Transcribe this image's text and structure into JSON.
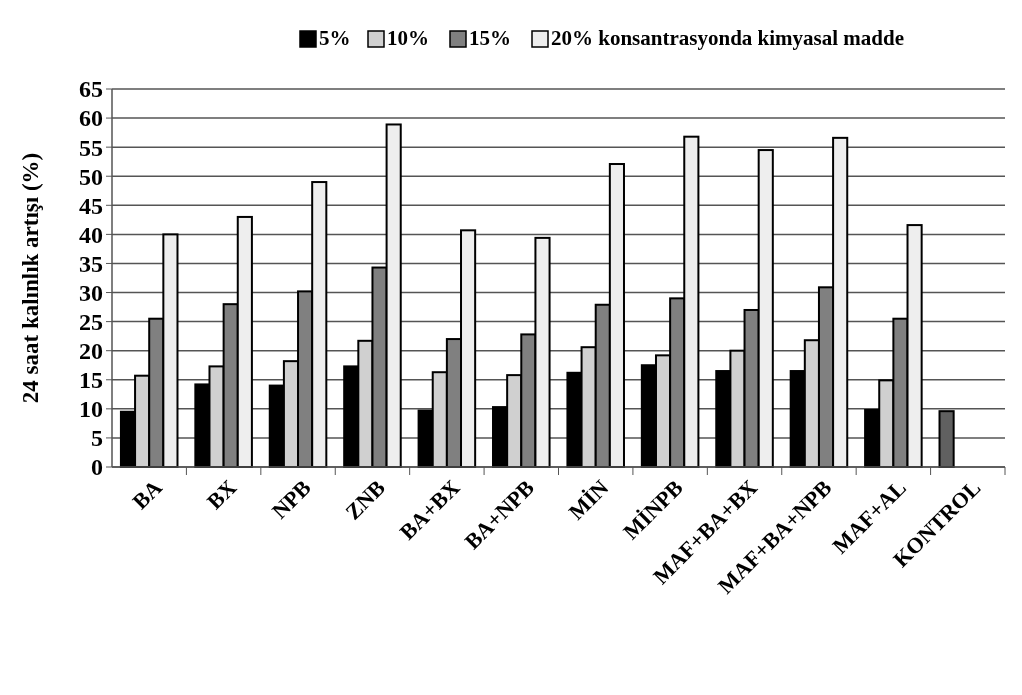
{
  "chart_data": {
    "type": "bar",
    "ylabel": "24 saat kalınlık artışı (%)",
    "categories": [
      "BA",
      "BX",
      "NPB",
      "ZNB",
      "BA+BX",
      "BA+NPB",
      "MİN",
      "MİNPB",
      "MAF+BA+BX",
      "MAF+BA+NPB",
      "MAF+AL",
      "KONTROL"
    ],
    "series": [
      {
        "name": "5%",
        "color": "#000000",
        "colors": [
          "#000000",
          "#000000",
          "#000000",
          "#000000",
          "#000000",
          "#000000",
          "#000000",
          "#000000",
          "#000000",
          "#000000",
          "#000000",
          "#606060"
        ],
        "values": [
          9.5,
          14.2,
          14,
          17.3,
          9.7,
          10.3,
          16.2,
          17.5,
          16.5,
          16.5,
          9.8,
          9.6
        ]
      },
      {
        "name": "10%",
        "color": "#d0d0d0",
        "values": [
          15.7,
          17.3,
          18.2,
          21.7,
          16.3,
          15.8,
          20.6,
          19.2,
          20,
          21.8,
          14.9,
          null
        ]
      },
      {
        "name": "15%",
        "color": "#808080",
        "values": [
          25.5,
          28,
          30.2,
          34.3,
          22,
          22.8,
          27.9,
          29,
          27,
          30.9,
          25.5,
          null
        ]
      },
      {
        "name": "20% konsantrasyonda kimyasal madde",
        "color": "#eeeeee",
        "values": [
          40,
          43,
          49,
          58.9,
          40.7,
          39.4,
          52.1,
          56.8,
          54.5,
          56.6,
          41.6,
          null
        ]
      }
    ],
    "ylim": [
      0,
      65
    ],
    "yticks": [
      0,
      5,
      10,
      15,
      20,
      25,
      30,
      35,
      40,
      45,
      50,
      55,
      60,
      65
    ],
    "grid": "y",
    "legend": "top"
  }
}
